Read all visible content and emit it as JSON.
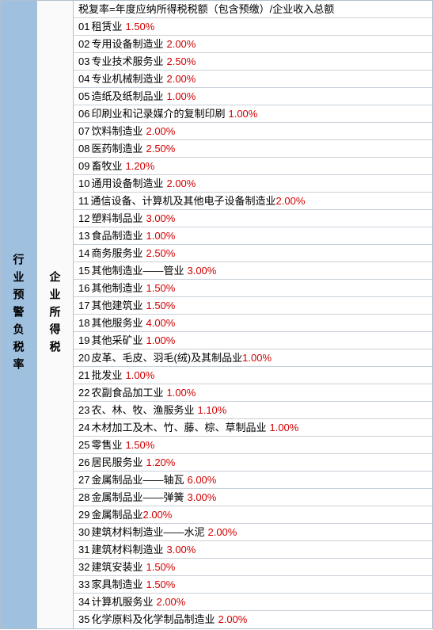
{
  "left_column_label": "行业预警负税率",
  "mid_column_label": "企业所得税",
  "header_text": "税复率=年度应纳所得税税额（包含预缴）/企业收入总额",
  "rows": [
    {
      "num": "01",
      "label": "租赁业",
      "rate": "1.50%",
      "space": true
    },
    {
      "num": "02",
      "label": "专用设备制造业",
      "rate": "2.00%",
      "space": true
    },
    {
      "num": "03",
      "label": "专业技术服务业",
      "rate": "2.50%",
      "space": true
    },
    {
      "num": "04",
      "label": "专业机械制造业",
      "rate": "2.00%",
      "space": true
    },
    {
      "num": "05",
      "label": "造纸及纸制品业",
      "rate": "1.00%",
      "space": true
    },
    {
      "num": "06",
      "label": "印刷业和记录媒介的复制印刷",
      "rate": "1.00%",
      "space": true
    },
    {
      "num": "07",
      "label": "饮料制造业",
      "rate": "2.00%",
      "space": true
    },
    {
      "num": "08",
      "label": "医药制造业",
      "rate": "2.50%",
      "space": true
    },
    {
      "num": "09",
      "label": "畜牧业",
      "rate": "1.20%",
      "space": true
    },
    {
      "num": "10",
      "label": "通用设备制造业",
      "rate": "2.00%",
      "space": true
    },
    {
      "num": "11",
      "label": "通信设备、计算机及其他电子设备制造业",
      "rate": "2.00%",
      "space": false
    },
    {
      "num": "12",
      "label": "塑料制品业",
      "rate": "3.00%",
      "space": true
    },
    {
      "num": "13",
      "label": "食品制造业",
      "rate": "1.00%",
      "space": true
    },
    {
      "num": "14",
      "label": "商务服务业",
      "rate": "2.50%",
      "space": true
    },
    {
      "num": "15",
      "label": "其他制造业——管业",
      "rate": "3.00%",
      "space": true
    },
    {
      "num": "16",
      "label": "其他制造业",
      "rate": "1.50%",
      "space": true
    },
    {
      "num": "17",
      "label": "其他建筑业",
      "rate": "1.50%",
      "space": true
    },
    {
      "num": "18",
      "label": "其他服务业",
      "rate": "4.00%",
      "space": true
    },
    {
      "num": "19",
      "label": "其他采矿业",
      "rate": "1.00%",
      "space": true
    },
    {
      "num": "20",
      "label": "皮革、毛皮、羽毛(绒)及其制品业",
      "rate": "1.00%",
      "space": false
    },
    {
      "num": "21",
      "label": "批发业",
      "rate": "1.00%",
      "space": true
    },
    {
      "num": "22",
      "label": "农副食品加工业",
      "rate": "1.00%",
      "space": true
    },
    {
      "num": "23",
      "label": "农、林、牧、渔服务业",
      "rate": "1.10%",
      "space": true
    },
    {
      "num": "24",
      "label": "木材加工及木、竹、藤、棕、草制品业",
      "rate": "1.00%",
      "space": true
    },
    {
      "num": "25",
      "label": "零售业",
      "rate": "1.50%",
      "space": true
    },
    {
      "num": "26",
      "label": "居民服务业",
      "rate": "1.20%",
      "space": true
    },
    {
      "num": "27",
      "label": "金属制品业——轴瓦",
      "rate": "6.00%",
      "space": true
    },
    {
      "num": "28",
      "label": "金属制品业——弹簧",
      "rate": "3.00%",
      "space": true
    },
    {
      "num": "29",
      "label": "金属制品业",
      "rate": "2.00%",
      "space": false,
      "nospace_after_num": true
    },
    {
      "num": "30",
      "label": "建筑材料制造业——水泥",
      "rate": "2.00%",
      "space": true
    },
    {
      "num": "31",
      "label": "建筑材料制造业",
      "rate": "3.00%",
      "space": true
    },
    {
      "num": "32",
      "label": "建筑安装业",
      "rate": "1.50%",
      "space": true
    },
    {
      "num": "33",
      "label": "家具制造业",
      "rate": "1.50%",
      "space": true
    },
    {
      "num": "34",
      "label": "计算机服务业",
      "rate": "2.00%",
      "space": true
    },
    {
      "num": "35",
      "label": "化学原料及化学制品制造业",
      "rate": "2.00%",
      "space": true
    }
  ],
  "colors": {
    "left_bg": "#a0c0e0",
    "rate_color": "#d00000",
    "border_color": "#c8d0d8",
    "text_color": "#000000"
  }
}
